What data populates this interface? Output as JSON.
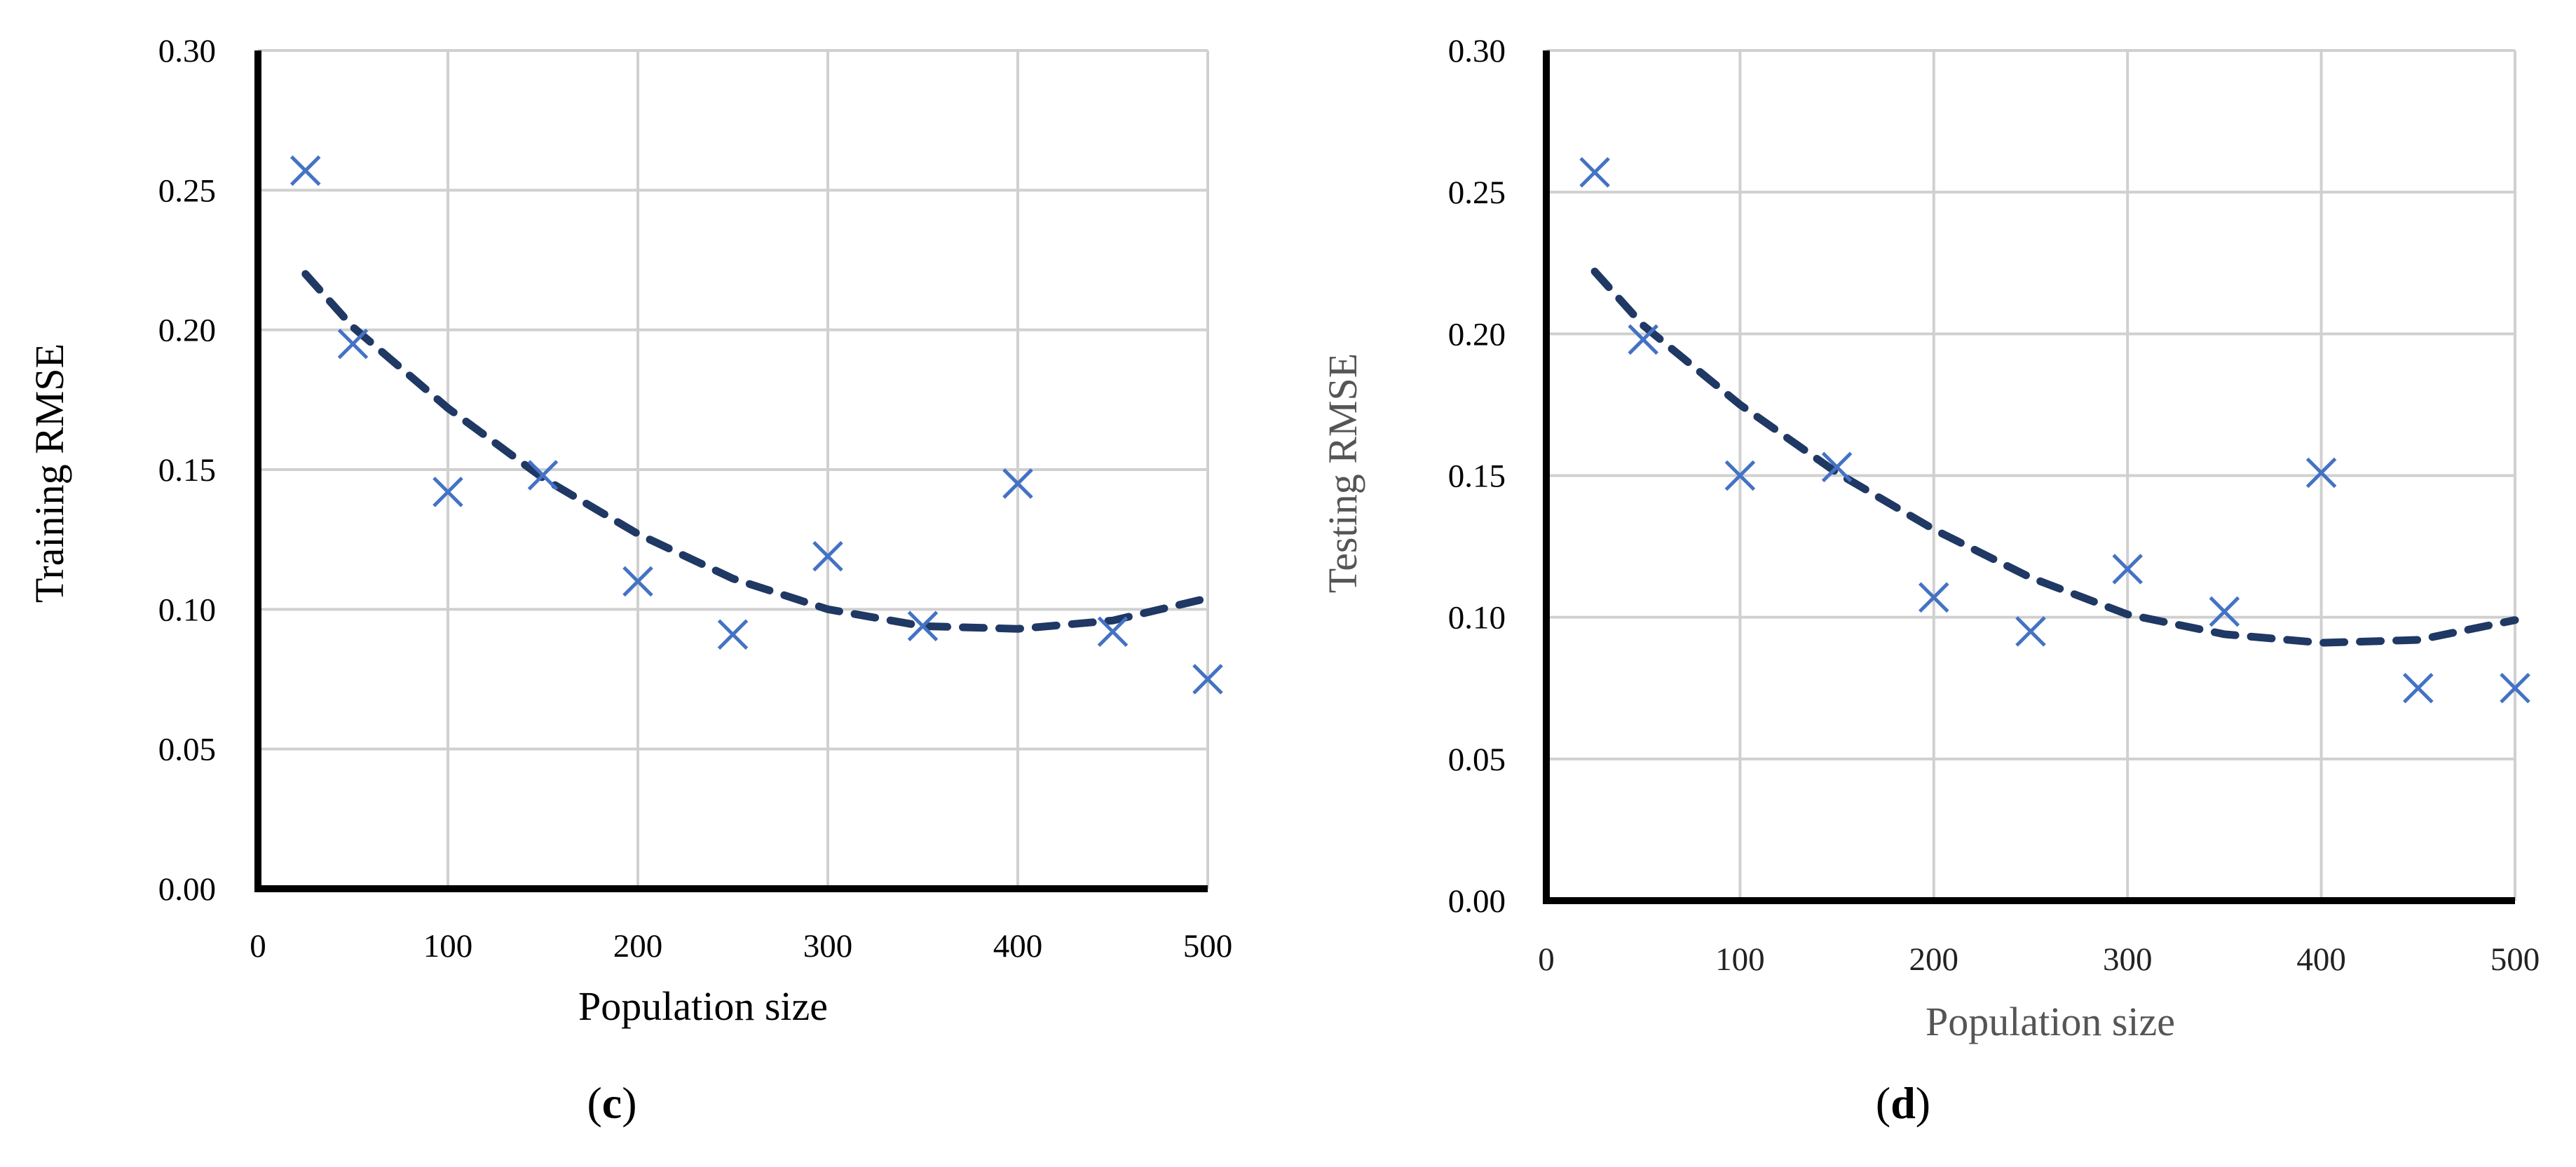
{
  "chart_data": [
    {
      "type": "scatter",
      "caption_label": "c",
      "xlabel": "Population size",
      "ylabel": "Training RMSE",
      "xlim": [
        0,
        500
      ],
      "ylim": [
        0,
        0.3
      ],
      "xticks": [
        "0",
        "100",
        "200",
        "300",
        "400",
        "500"
      ],
      "yticks": [
        "0.00",
        "0.05",
        "0.10",
        "0.15",
        "0.20",
        "0.25",
        "0.30"
      ],
      "grid": true,
      "series": [
        {
          "marker": "x",
          "color": "#4472C4",
          "x": [
            25,
            50,
            100,
            150,
            200,
            250,
            300,
            350,
            400,
            450,
            500
          ],
          "y": [
            0.257,
            0.195,
            0.142,
            0.148,
            0.11,
            0.091,
            0.119,
            0.094,
            0.145,
            0.092,
            0.075
          ]
        }
      ],
      "trendline": {
        "style": "dashed",
        "color": "#1F3864",
        "x": [
          25,
          50,
          100,
          150,
          200,
          250,
          300,
          350,
          400,
          450,
          500
        ],
        "y": [
          0.22,
          0.201,
          0.172,
          0.147,
          0.127,
          0.111,
          0.1,
          0.094,
          0.093,
          0.096,
          0.104
        ]
      }
    },
    {
      "type": "scatter",
      "caption_label": "d",
      "xlabel": "Population size",
      "ylabel": "Testing RMSE",
      "xlim": [
        0,
        500
      ],
      "ylim": [
        0,
        0.3
      ],
      "xticks": [
        "0",
        "100",
        "200",
        "300",
        "400",
        "500"
      ],
      "yticks": [
        "0.00",
        "0.05",
        "0.10",
        "0.15",
        "0.20",
        "0.25",
        "0.30"
      ],
      "grid": true,
      "series": [
        {
          "marker": "x",
          "color": "#4472C4",
          "x": [
            25,
            50,
            100,
            150,
            200,
            250,
            300,
            350,
            400,
            450,
            500
          ],
          "y": [
            0.257,
            0.198,
            0.15,
            0.153,
            0.107,
            0.095,
            0.117,
            0.102,
            0.151,
            0.075,
            0.075
          ]
        }
      ],
      "trendline": {
        "style": "dashed",
        "color": "#1F3864",
        "x": [
          25,
          50,
          100,
          150,
          200,
          250,
          300,
          350,
          400,
          450,
          500
        ],
        "y": [
          0.222,
          0.203,
          0.175,
          0.151,
          0.131,
          0.114,
          0.101,
          0.094,
          0.091,
          0.092,
          0.099
        ]
      }
    }
  ]
}
